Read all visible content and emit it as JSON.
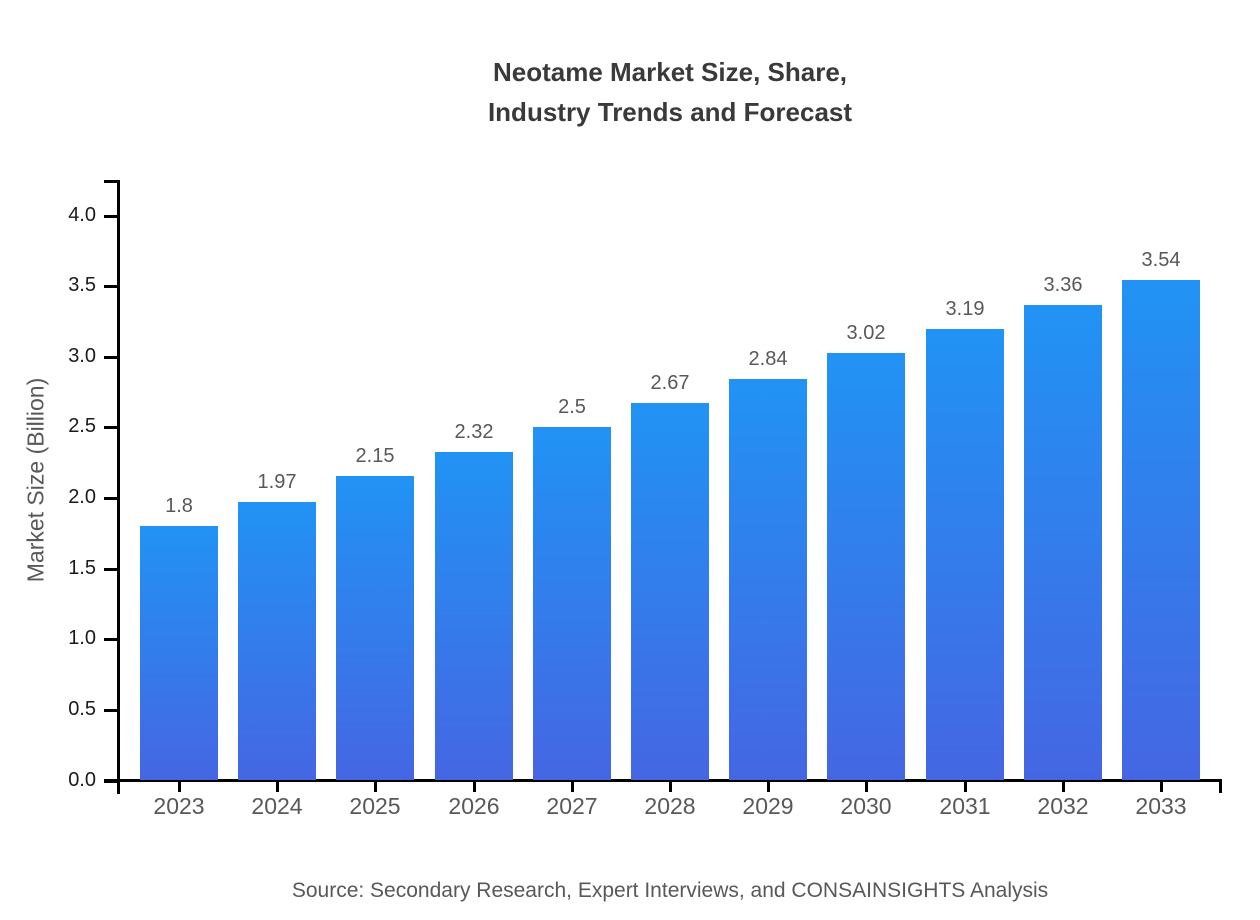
{
  "title": {
    "lines": [
      "Neotame Market Size, Share,",
      "Industry Trends and Forecast"
    ]
  },
  "source": "Source: Secondary Research, Expert Interviews, and CONSAINSIGHTS Analysis",
  "chart_data": {
    "type": "bar",
    "title": "Neotame Market Size, Share, Industry Trends and Forecast",
    "categories": [
      "2023",
      "2024",
      "2025",
      "2026",
      "2027",
      "2028",
      "2029",
      "2030",
      "2031",
      "2032",
      "2033"
    ],
    "values": [
      1.8,
      1.97,
      2.15,
      2.32,
      2.5,
      2.67,
      2.84,
      3.02,
      3.19,
      3.36,
      3.54
    ],
    "value_labels": [
      "1.8",
      "1.97",
      "2.15",
      "2.32",
      "2.5",
      "2.67",
      "2.84",
      "3.02",
      "3.19",
      "3.36",
      "3.54"
    ],
    "xlabel": "",
    "ylabel": "Market Size (Billion)",
    "ylim": [
      0,
      4.25
    ],
    "yticks": [
      0.0,
      0.5,
      1.0,
      1.5,
      2.0,
      2.5,
      3.0,
      3.5,
      4.0
    ],
    "grid": false,
    "legend": "none",
    "bar_color_top": "#2193f4",
    "bar_color_bottom": "#4566e3"
  },
  "colors": {
    "background": "#ffffff",
    "title_text": "#3a3a3a",
    "axis": "#000000",
    "y_tick_label": "#1a1a1a",
    "muted_label": "#585858"
  }
}
